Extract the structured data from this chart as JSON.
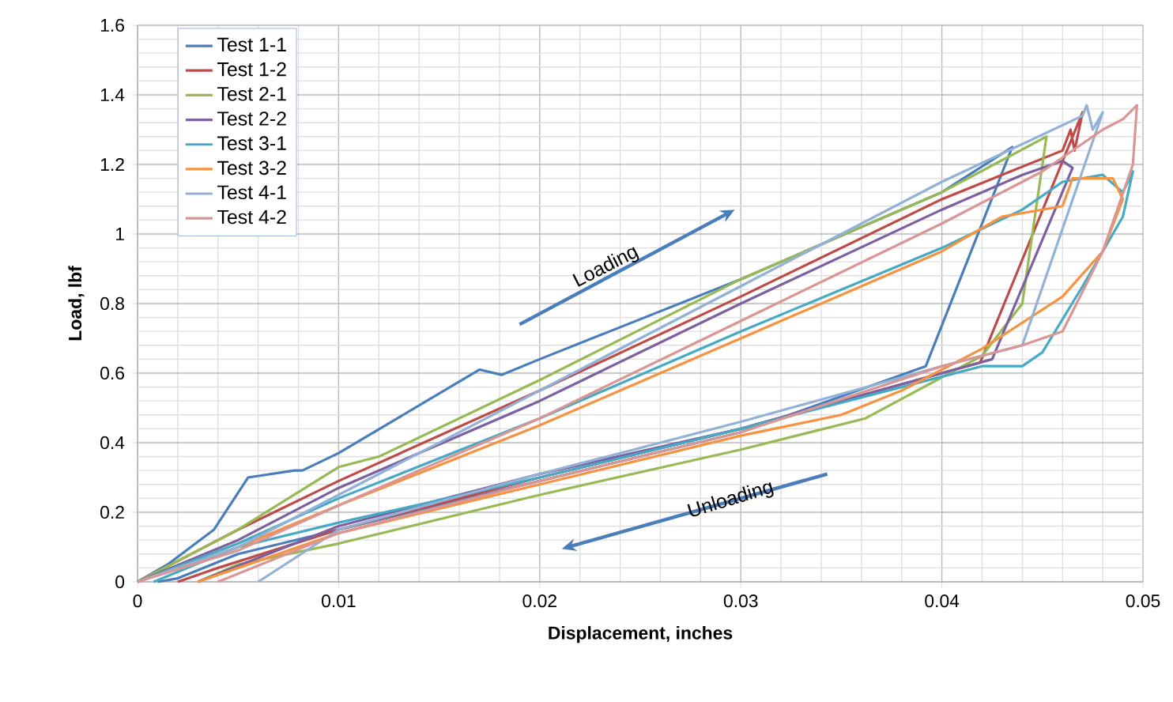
{
  "chart_data": {
    "type": "line",
    "xlabel": "Displacement, inches",
    "ylabel": "Load, lbf",
    "xlim": [
      0,
      0.05
    ],
    "ylim": [
      0,
      1.6
    ],
    "xticks": [
      0,
      0.01,
      0.02,
      0.03,
      0.04,
      0.05
    ],
    "yticks": [
      0,
      0.2,
      0.4,
      0.6,
      0.8,
      1,
      1.2,
      1.4,
      1.6
    ],
    "grid": true,
    "legend": "top left",
    "annotations": [
      "Loading",
      "Unloading"
    ],
    "series": [
      {
        "name": "Test 1-1",
        "color": "#4a7ebb",
        "x": [
          0,
          0.0015,
          0.0038,
          0.0055,
          0.0078,
          0.0082,
          0.01,
          0.017,
          0.0181,
          0.02,
          0.03,
          0.04,
          0.0435,
          0.0392,
          0.03,
          0.02,
          0.01,
          0.005,
          0.002,
          0.001
        ],
        "values": [
          0,
          0.05,
          0.15,
          0.3,
          0.32,
          0.32,
          0.37,
          0.61,
          0.595,
          0.64,
          0.87,
          1.12,
          1.25,
          0.62,
          0.43,
          0.29,
          0.15,
          0.08,
          0.01,
          0
        ]
      },
      {
        "name": "Test 1-2",
        "color": "#be4b48",
        "x": [
          0,
          0.005,
          0.01,
          0.02,
          0.03,
          0.04,
          0.046,
          0.0464,
          0.0466,
          0.047,
          0.0419,
          0.04,
          0.03,
          0.02,
          0.01,
          0.004,
          0.002
        ],
        "values": [
          0,
          0.15,
          0.29,
          0.55,
          0.82,
          1.1,
          1.24,
          1.3,
          1.24,
          1.35,
          0.63,
          0.6,
          0.44,
          0.3,
          0.15,
          0.04,
          0
        ]
      },
      {
        "name": "Test 2-1",
        "color": "#98b954",
        "x": [
          0,
          0.005,
          0.01,
          0.012,
          0.02,
          0.03,
          0.04,
          0.0452,
          0.044,
          0.042,
          0.0362,
          0.03,
          0.02,
          0.01,
          0.005,
          0.003
        ],
        "values": [
          0,
          0.15,
          0.33,
          0.36,
          0.58,
          0.87,
          1.12,
          1.28,
          0.8,
          0.65,
          0.47,
          0.38,
          0.25,
          0.11,
          0.05,
          0
        ]
      },
      {
        "name": "Test 2-2",
        "color": "#7d60a0",
        "x": [
          0,
          0.005,
          0.01,
          0.02,
          0.03,
          0.04,
          0.044,
          0.046,
          0.0465,
          0.0425,
          0.04,
          0.03,
          0.02,
          0.01,
          0.003
        ],
        "values": [
          0,
          0.12,
          0.27,
          0.52,
          0.8,
          1.07,
          1.17,
          1.21,
          1.19,
          0.64,
          0.6,
          0.44,
          0.31,
          0.16,
          0
        ]
      },
      {
        "name": "Test 3-1",
        "color": "#46aac5",
        "x": [
          0,
          0.005,
          0.01,
          0.02,
          0.03,
          0.04,
          0.044,
          0.046,
          0.048,
          0.049,
          0.0495,
          0.049,
          0.047,
          0.045,
          0.044,
          0.042,
          0.04,
          0.03,
          0.02,
          0.01,
          0.005,
          0.0008
        ],
        "values": [
          0,
          0.11,
          0.24,
          0.47,
          0.72,
          0.96,
          1.07,
          1.15,
          1.17,
          1.12,
          1.18,
          1.05,
          0.85,
          0.66,
          0.62,
          0.62,
          0.59,
          0.44,
          0.3,
          0.17,
          0.1,
          0
        ]
      },
      {
        "name": "Test 3-2",
        "color": "#f69240",
        "x": [
          0,
          0.005,
          0.01,
          0.02,
          0.03,
          0.04,
          0.043,
          0.046,
          0.0465,
          0.0485,
          0.049,
          0.048,
          0.046,
          0.042,
          0.038,
          0.035,
          0.03,
          0.02,
          0.01,
          0.003
        ],
        "values": [
          0,
          0.1,
          0.22,
          0.45,
          0.7,
          0.95,
          1.05,
          1.08,
          1.16,
          1.16,
          1.1,
          0.95,
          0.82,
          0.67,
          0.55,
          0.48,
          0.42,
          0.28,
          0.14,
          0
        ]
      },
      {
        "name": "Test 4-1",
        "color": "#92b1d6",
        "x": [
          0,
          0.005,
          0.01,
          0.02,
          0.03,
          0.04,
          0.047,
          0.0472,
          0.0475,
          0.048,
          0.044,
          0.04,
          0.03,
          0.02,
          0.01,
          0.006
        ],
        "values": [
          0,
          0.1,
          0.25,
          0.55,
          0.85,
          1.15,
          1.34,
          1.37,
          1.3,
          1.35,
          0.68,
          0.62,
          0.46,
          0.31,
          0.15,
          0
        ]
      },
      {
        "name": "Test 4-2",
        "color": "#d99694",
        "x": [
          0,
          0.005,
          0.01,
          0.02,
          0.03,
          0.04,
          0.045,
          0.048,
          0.049,
          0.0497,
          0.0495,
          0.048,
          0.046,
          0.044,
          0.04,
          0.03,
          0.02,
          0.01,
          0.004
        ],
        "values": [
          0,
          0.09,
          0.22,
          0.47,
          0.75,
          1.03,
          1.18,
          1.3,
          1.33,
          1.37,
          1.2,
          0.95,
          0.72,
          0.68,
          0.62,
          0.43,
          0.29,
          0.14,
          0
        ]
      }
    ]
  }
}
